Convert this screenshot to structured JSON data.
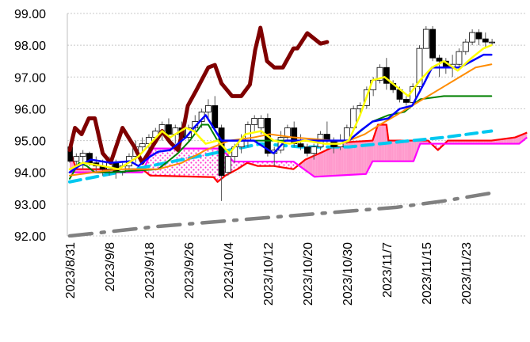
{
  "chart_data": {
    "type": "line",
    "subtype": "candlestick-ichimoku",
    "title": "",
    "xlabel": "",
    "ylabel": "",
    "ylim": [
      92,
      99
    ],
    "xlim_index": [
      0,
      69
    ],
    "grid": "horizontal-dotted",
    "y_ticks": [
      "92.00",
      "93.00",
      "94.00",
      "95.00",
      "96.00",
      "97.00",
      "98.00",
      "99.00"
    ],
    "x_ticks": [
      {
        "index": 0,
        "label": "2023/8/31"
      },
      {
        "index": 6,
        "label": "2023/9/8"
      },
      {
        "index": 12,
        "label": "2023/9/18"
      },
      {
        "index": 18,
        "label": "2023/9/26"
      },
      {
        "index": 24,
        "label": "2023/10/4"
      },
      {
        "index": 30,
        "label": "2023/10/12"
      },
      {
        "index": 36,
        "label": "2023/10/20"
      },
      {
        "index": 42,
        "label": "2023/10/30"
      },
      {
        "index": 48,
        "label": "2023/11/7"
      },
      {
        "index": 54,
        "label": "2023/11/15"
      },
      {
        "index": 60,
        "label": "2023/11/23"
      }
    ],
    "candles_ohlc": [
      [
        94.8,
        94.9,
        94.3,
        94.35
      ],
      [
        94.35,
        94.6,
        94.2,
        94.5
      ],
      [
        94.5,
        94.7,
        94.1,
        94.6
      ],
      [
        94.6,
        94.65,
        94.2,
        94.3
      ],
      [
        94.3,
        94.5,
        94.0,
        94.2
      ],
      [
        94.2,
        94.4,
        93.9,
        94.1
      ],
      [
        94.1,
        94.5,
        93.9,
        94.3
      ],
      [
        94.3,
        94.4,
        93.8,
        94.0
      ],
      [
        94.0,
        94.3,
        93.9,
        94.2
      ],
      [
        94.2,
        94.6,
        94.0,
        94.5
      ],
      [
        94.5,
        95.0,
        94.3,
        94.8
      ],
      [
        94.8,
        95.1,
        94.6,
        94.9
      ],
      [
        94.9,
        95.2,
        94.7,
        95.1
      ],
      [
        95.1,
        95.4,
        94.9,
        95.3
      ],
      [
        95.3,
        95.6,
        95.0,
        95.5
      ],
      [
        95.5,
        95.7,
        95.1,
        95.2
      ],
      [
        95.2,
        95.5,
        94.9,
        95.4
      ],
      [
        95.4,
        95.6,
        95.0,
        95.1
      ],
      [
        95.1,
        95.5,
        95.0,
        95.4
      ],
      [
        95.4,
        95.8,
        95.2,
        95.6
      ],
      [
        95.6,
        96.0,
        95.4,
        95.9
      ],
      [
        95.9,
        96.3,
        95.7,
        96.1
      ],
      [
        96.1,
        96.4,
        95.3,
        95.4
      ],
      [
        95.4,
        95.5,
        93.1,
        93.9
      ],
      [
        94.0,
        94.6,
        93.9,
        94.5
      ],
      [
        94.5,
        94.9,
        94.3,
        94.8
      ],
      [
        94.8,
        95.2,
        94.6,
        95.0
      ],
      [
        95.0,
        95.6,
        94.8,
        95.5
      ],
      [
        95.5,
        95.8,
        95.3,
        95.7
      ],
      [
        95.4,
        95.8,
        95.2,
        95.7
      ],
      [
        95.7,
        95.85,
        94.5,
        94.6
      ],
      [
        94.6,
        94.8,
        94.2,
        94.7
      ],
      [
        94.7,
        95.3,
        94.6,
        95.1
      ],
      [
        95.1,
        95.5,
        95.0,
        95.4
      ],
      [
        95.4,
        95.6,
        94.8,
        94.9
      ],
      [
        94.9,
        95.2,
        94.7,
        94.8
      ],
      [
        94.8,
        94.9,
        94.5,
        94.6
      ],
      [
        94.6,
        94.9,
        94.4,
        94.8
      ],
      [
        94.8,
        95.3,
        94.7,
        95.2
      ],
      [
        95.2,
        95.6,
        94.9,
        95.0
      ],
      [
        95.0,
        95.1,
        94.6,
        94.8
      ],
      [
        94.8,
        95.2,
        94.7,
        95.0
      ],
      [
        95.0,
        95.5,
        94.9,
        95.4
      ],
      [
        95.4,
        96.1,
        95.3,
        96.0
      ],
      [
        96.0,
        96.2,
        95.8,
        96.1
      ],
      [
        96.1,
        96.7,
        96.0,
        96.6
      ],
      [
        96.6,
        97.0,
        96.4,
        96.9
      ],
      [
        96.9,
        97.4,
        96.8,
        97.3
      ],
      [
        97.3,
        97.6,
        96.6,
        96.8
      ],
      [
        96.8,
        96.9,
        96.5,
        96.6
      ],
      [
        96.6,
        96.7,
        96.2,
        96.3
      ],
      [
        96.3,
        96.4,
        96.1,
        96.2
      ],
      [
        96.2,
        96.8,
        96.1,
        96.7
      ],
      [
        96.7,
        98.0,
        96.6,
        97.9
      ],
      [
        97.9,
        98.6,
        97.9,
        98.5
      ],
      [
        98.5,
        98.6,
        97.5,
        97.6
      ],
      [
        97.6,
        97.7,
        97.0,
        97.5
      ],
      [
        97.5,
        97.6,
        97.1,
        97.3
      ],
      [
        97.3,
        97.7,
        97.0,
        97.4
      ],
      [
        97.4,
        97.9,
        97.2,
        97.8
      ],
      [
        97.8,
        98.2,
        97.7,
        98.1
      ],
      [
        98.1,
        98.5,
        98.0,
        98.4
      ],
      [
        98.4,
        98.5,
        98.0,
        98.2
      ],
      [
        98.2,
        98.4,
        97.9,
        98.1
      ],
      [
        98.1,
        98.2,
        98.0,
        98.1
      ]
    ],
    "series": [
      {
        "name": "chikou",
        "color": "#7f0000",
        "width": 5,
        "dash": "",
        "points": [
          [
            0,
            94.7
          ],
          [
            0.8,
            95.4
          ],
          [
            1.8,
            95.2
          ],
          [
            2.9,
            95.7
          ],
          [
            3.8,
            95.7
          ],
          [
            5,
            94.6
          ],
          [
            6.2,
            94.3
          ],
          [
            8,
            95.4
          ],
          [
            9.8,
            94.8
          ],
          [
            11,
            94.3
          ],
          [
            12.5,
            94.8
          ],
          [
            14,
            95.3
          ],
          [
            15.2,
            94.95
          ],
          [
            16.4,
            94.7
          ],
          [
            17.4,
            95.55
          ],
          [
            17.9,
            96.1
          ],
          [
            19.1,
            96.55
          ],
          [
            21,
            97.3
          ],
          [
            22,
            97.38
          ],
          [
            23,
            96.8
          ],
          [
            24.6,
            96.4
          ],
          [
            26,
            96.4
          ],
          [
            27.3,
            96.76
          ],
          [
            28.1,
            97.85
          ],
          [
            28.9,
            98.55
          ],
          [
            29.9,
            97.5
          ],
          [
            31,
            97.3
          ],
          [
            32.3,
            97.3
          ],
          [
            33.9,
            97.9
          ],
          [
            34.5,
            97.9
          ],
          [
            36,
            98.38
          ],
          [
            38,
            98.05
          ],
          [
            39,
            98.1
          ]
        ]
      },
      {
        "name": "sma-green",
        "color": "#008000",
        "width": 2,
        "dash": "",
        "points": [
          [
            0,
            93.8
          ],
          [
            1.4,
            94.3
          ],
          [
            2.6,
            94.2
          ],
          [
            3.8,
            94.0
          ],
          [
            6.2,
            94.0
          ],
          [
            13.4,
            94.1
          ],
          [
            14.6,
            94.3
          ],
          [
            16.4,
            94.6
          ],
          [
            18.2,
            95.0
          ],
          [
            20,
            95.5
          ],
          [
            21,
            95.5
          ],
          [
            22.4,
            95.0
          ],
          [
            25.4,
            95.0
          ],
          [
            42.3,
            95.0
          ],
          [
            44.7,
            95.4
          ],
          [
            45.9,
            95.6
          ],
          [
            48.3,
            95.8
          ],
          [
            50.7,
            95.9
          ],
          [
            53.1,
            96.3
          ],
          [
            56.7,
            96.4
          ],
          [
            63.9,
            96.4
          ]
        ]
      },
      {
        "name": "sma-orange",
        "color": "#ff8c00",
        "width": 2,
        "dash": "",
        "points": [
          [
            0,
            93.9
          ],
          [
            7.4,
            94.1
          ],
          [
            13.4,
            94.1
          ],
          [
            17,
            94.3
          ],
          [
            20.6,
            94.7
          ],
          [
            24.2,
            95.0
          ],
          [
            27.9,
            95.1
          ],
          [
            30.3,
            95.2
          ],
          [
            33.9,
            95.1
          ],
          [
            39.9,
            95.0
          ],
          [
            42.3,
            95.0
          ],
          [
            44.7,
            95.2
          ],
          [
            47,
            95.5
          ],
          [
            49.5,
            95.8
          ],
          [
            51.9,
            96.1
          ],
          [
            54.3,
            96.4
          ],
          [
            56.7,
            96.7
          ],
          [
            59.1,
            97.0
          ],
          [
            61.5,
            97.3
          ],
          [
            63.9,
            97.4
          ]
        ]
      },
      {
        "name": "kijun",
        "color": "#0000ff",
        "width": 2.5,
        "dash": "",
        "points": [
          [
            0,
            94.0
          ],
          [
            1.4,
            94.2
          ],
          [
            3.2,
            94.4
          ],
          [
            6.2,
            94.3
          ],
          [
            9.2,
            94.35
          ],
          [
            10.4,
            94.2
          ],
          [
            12.2,
            94.5
          ],
          [
            13.4,
            94.65
          ],
          [
            15.2,
            94.7
          ],
          [
            16.4,
            94.9
          ],
          [
            17.6,
            95.1
          ],
          [
            18.8,
            95.4
          ],
          [
            20.6,
            95.8
          ],
          [
            21.8,
            95.4
          ],
          [
            23,
            95.0
          ],
          [
            25.4,
            95.0
          ],
          [
            27.9,
            95.0
          ],
          [
            30.9,
            94.6
          ],
          [
            32.7,
            95.0
          ],
          [
            35,
            95.0
          ],
          [
            42.3,
            95.0
          ],
          [
            44,
            95.3
          ],
          [
            45.9,
            95.6
          ],
          [
            48.3,
            95.7
          ],
          [
            50,
            96.0
          ],
          [
            51.9,
            96.1
          ],
          [
            53.7,
            96.8
          ],
          [
            54.9,
            97.3
          ],
          [
            59.1,
            97.3
          ],
          [
            60.9,
            97.5
          ],
          [
            62.7,
            97.7
          ],
          [
            63.9,
            97.7
          ]
        ]
      },
      {
        "name": "tenkan",
        "color": "#ffff00",
        "width": 2.5,
        "dash": "",
        "points": [
          [
            0,
            94.1
          ],
          [
            2,
            94.3
          ],
          [
            5,
            94.2
          ],
          [
            7.4,
            94.1
          ],
          [
            10.4,
            94.5
          ],
          [
            14,
            95.3
          ],
          [
            15.2,
            95.1
          ],
          [
            17.6,
            95.4
          ],
          [
            18.8,
            95.3
          ],
          [
            20.6,
            94.9
          ],
          [
            22.4,
            95.0
          ],
          [
            24.2,
            94.6
          ],
          [
            26.6,
            95.2
          ],
          [
            29,
            95.3
          ],
          [
            30.9,
            95.0
          ],
          [
            33.3,
            94.9
          ],
          [
            35.7,
            95.0
          ],
          [
            38.7,
            94.9
          ],
          [
            41,
            94.9
          ],
          [
            42.3,
            95.0
          ],
          [
            44,
            95.8
          ],
          [
            45.9,
            96.9
          ],
          [
            47.7,
            97.0
          ],
          [
            49.5,
            96.7
          ],
          [
            51.3,
            96.4
          ],
          [
            53.1,
            96.9
          ],
          [
            54.9,
            97.3
          ],
          [
            56.7,
            97.5
          ],
          [
            58.8,
            97.2
          ],
          [
            60.9,
            97.6
          ],
          [
            62.7,
            97.9
          ],
          [
            63.9,
            98.0
          ]
        ]
      },
      {
        "name": "trend-cyan",
        "color": "#00c8f0",
        "width": 4,
        "dash": "14,8",
        "points": [
          [
            0,
            93.7
          ],
          [
            7.4,
            94.0
          ],
          [
            17,
            94.4
          ],
          [
            24.2,
            94.7
          ],
          [
            29,
            94.9
          ],
          [
            35,
            94.8
          ],
          [
            42.3,
            94.8
          ],
          [
            47,
            94.9
          ],
          [
            51.9,
            95.0
          ],
          [
            56.7,
            95.1
          ],
          [
            63.9,
            95.3
          ]
        ]
      },
      {
        "name": "trend-gray",
        "color": "#808080",
        "width": 4.5,
        "dash": "28,12,4,12",
        "points": [
          [
            0,
            92.0
          ],
          [
            13.4,
            92.3
          ],
          [
            25.4,
            92.5
          ],
          [
            37.5,
            92.7
          ],
          [
            49.5,
            92.9
          ],
          [
            56.7,
            93.1
          ],
          [
            63.9,
            93.35
          ]
        ]
      }
    ],
    "cloud": {
      "senkou_a": {
        "name": "senkou-a",
        "color": "#ff0000",
        "points": [
          [
            0,
            94.7
          ],
          [
            1,
            94.1
          ],
          [
            11,
            94.1
          ],
          [
            12.2,
            93.9
          ],
          [
            21.8,
            93.85
          ],
          [
            22.4,
            93.7
          ],
          [
            23.6,
            93.9
          ],
          [
            25.4,
            94.1
          ],
          [
            26.9,
            94.3
          ],
          [
            28.5,
            94.2
          ],
          [
            30.9,
            94.2
          ],
          [
            33.9,
            94.1
          ],
          [
            35.7,
            94.4
          ],
          [
            38.3,
            94.64
          ],
          [
            41.3,
            94.94
          ],
          [
            45.9,
            95.0
          ],
          [
            46.7,
            95.5
          ],
          [
            48,
            95.5
          ],
          [
            48.3,
            95.0
          ],
          [
            54.3,
            95.0
          ],
          [
            55.8,
            94.7
          ],
          [
            57.3,
            95.0
          ],
          [
            63.9,
            95.0
          ],
          [
            67.5,
            95.1
          ],
          [
            69.3,
            95.25
          ]
        ]
      },
      "senkou_b": {
        "name": "senkou-b",
        "color": "#ff00ff",
        "points": [
          [
            0,
            94.0
          ],
          [
            11,
            94.0
          ],
          [
            12.6,
            94.75
          ],
          [
            23,
            94.75
          ],
          [
            24.8,
            94.34
          ],
          [
            33.9,
            94.34
          ],
          [
            37.1,
            93.86
          ],
          [
            44.9,
            93.95
          ],
          [
            45.9,
            94.35
          ],
          [
            52.1,
            94.35
          ],
          [
            53.1,
            94.9
          ],
          [
            68.1,
            94.9
          ],
          [
            69.3,
            95.1
          ]
        ]
      },
      "bullish_fill": "#ff99cc",
      "bearish_fill": "dotted-magenta"
    }
  }
}
